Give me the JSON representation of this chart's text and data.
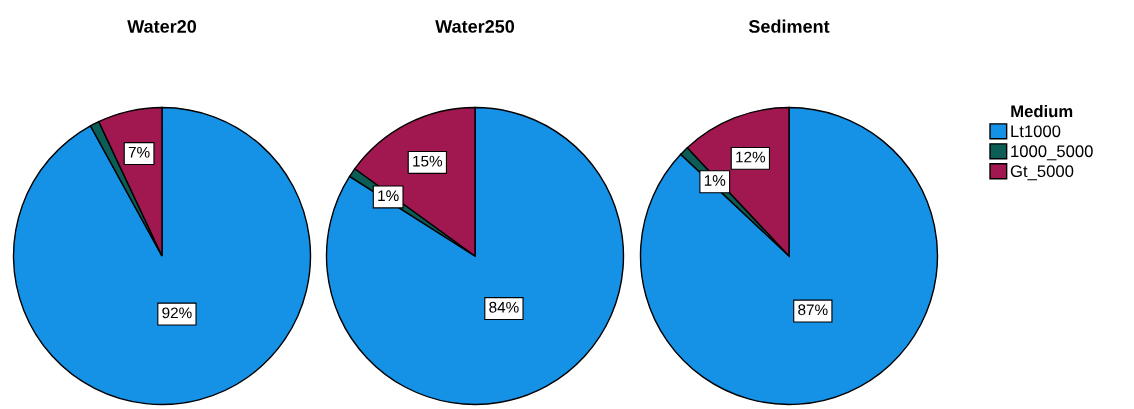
{
  "chart_data": {
    "type": "pie",
    "categories": [
      "Lt1000",
      "1000_5000",
      "Gt_5000"
    ],
    "colors": [
      "#1591e6",
      "#0b5d56",
      "#a0184f"
    ],
    "legend": "right",
    "legend_title": "Medium",
    "series": [
      {
        "name": "Water20",
        "values": [
          92,
          1,
          7
        ],
        "value_labels": [
          "92%",
          null,
          "7%"
        ]
      },
      {
        "name": "Water250",
        "values": [
          84,
          1,
          15
        ],
        "value_labels": [
          "84%",
          "1%",
          "15%"
        ]
      },
      {
        "name": "Sediment",
        "values": [
          87,
          1,
          12
        ],
        "value_labels": [
          "87%",
          "1%",
          "12%"
        ]
      }
    ]
  }
}
